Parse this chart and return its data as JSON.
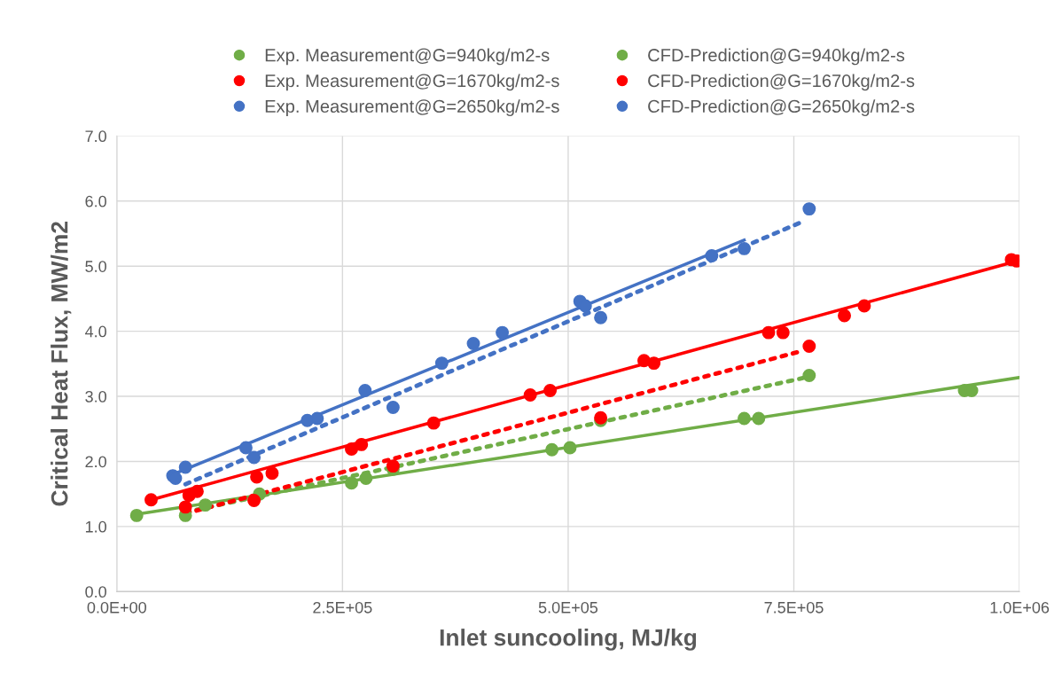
{
  "chart_data": {
    "type": "scatter",
    "xlabel": "Inlet suncooling, MJ/kg",
    "ylabel": "Critical Heat Flux, MW/m2",
    "xlim": [
      0,
      1000000
    ],
    "xticks": [
      {
        "value": 0,
        "label": "0.0E+00"
      },
      {
        "value": 250000,
        "label": "2.5E+05"
      },
      {
        "value": 500000,
        "label": "5.0E+05"
      },
      {
        "value": 750000,
        "label": "7.5E+05"
      },
      {
        "value": 1000000,
        "label": "1.0E+06"
      }
    ],
    "ylim": [
      0,
      7
    ],
    "yticks": [
      {
        "value": 0,
        "label": "0.0"
      },
      {
        "value": 1,
        "label": "1.0"
      },
      {
        "value": 2,
        "label": "2.0"
      },
      {
        "value": 3,
        "label": "3.0"
      },
      {
        "value": 4,
        "label": "4.0"
      },
      {
        "value": 5,
        "label": "5.0"
      },
      {
        "value": 6,
        "label": "6.0"
      },
      {
        "value": 7,
        "label": "7.0"
      }
    ],
    "grid": true,
    "legend": "top",
    "marker": "circle",
    "series": [
      {
        "name": "Exp. Measurement@G=940kg/m2-s",
        "color": "#70ad47",
        "x": [
          22000,
          98000,
          158000,
          260000,
          276000,
          482000,
          502000,
          695000,
          711000,
          939000,
          947000
        ],
        "values": [
          1.17,
          1.33,
          1.5,
          1.67,
          1.74,
          2.18,
          2.21,
          2.66,
          2.66,
          3.09,
          3.09
        ]
      },
      {
        "name": "CFD-Prediction@G=940kg/m2-s",
        "color": "#70ad47",
        "x": [
          76000,
          158000,
          306000,
          536000,
          767000
        ],
        "values": [
          1.17,
          null,
          1.88,
          2.63,
          3.32
        ]
      },
      {
        "name": "Exp. Measurement@G=1670kg/m2-s",
        "color": "#ff0000",
        "x": [
          38000,
          80000,
          89000,
          155000,
          172000,
          260000,
          271000,
          351000,
          458000,
          480000,
          584000,
          595000,
          722000,
          738000,
          806000,
          828000,
          991000,
          997000
        ],
        "values": [
          1.41,
          1.48,
          1.54,
          1.76,
          1.82,
          2.19,
          2.26,
          2.59,
          3.02,
          3.09,
          3.55,
          3.51,
          3.98,
          3.98,
          4.24,
          4.39,
          5.1,
          5.08
        ]
      },
      {
        "name": "CFD-Prediction@G=1670kg/m2-s",
        "color": "#ff0000",
        "x": [
          76000,
          152000,
          306000,
          536000,
          767000
        ],
        "values": [
          1.3,
          1.4,
          1.93,
          2.67,
          3.77
        ]
      },
      {
        "name": "Exp. Measurement@G=2650kg/m2-s",
        "color": "#4472c4",
        "x": [
          62000,
          65000,
          143000,
          211000,
          222000,
          275000,
          360000,
          395000,
          427000,
          513000,
          519000,
          659000,
          695000
        ],
        "values": [
          1.78,
          1.74,
          2.21,
          2.63,
          2.66,
          3.09,
          3.51,
          3.81,
          3.98,
          4.46,
          4.39,
          5.16,
          5.27
        ]
      },
      {
        "name": "CFD-Prediction@G=2650kg/m2-s",
        "color": "#4472c4",
        "x": [
          76000,
          152000,
          306000,
          536000,
          767000
        ],
        "values": [
          1.91,
          2.06,
          2.83,
          4.21,
          5.88
        ]
      },
      {
        "type": "line",
        "color": "#70ad47",
        "marker": "none",
        "line_style": "solid",
        "x": [
          22000,
          1000000
        ],
        "values": [
          1.19,
          3.29
        ]
      },
      {
        "type": "line",
        "color": "#70ad47",
        "marker": "none",
        "line_style": "dotted",
        "x": [
          76000,
          760000
        ],
        "values": [
          1.22,
          3.28
        ]
      },
      {
        "type": "line",
        "color": "#ff0000",
        "marker": "none",
        "line_style": "solid",
        "x": [
          38000,
          1000000
        ],
        "values": [
          1.41,
          5.09
        ]
      },
      {
        "type": "line",
        "color": "#ff0000",
        "marker": "none",
        "line_style": "dotted",
        "x": [
          76000,
          760000
        ],
        "values": [
          1.2,
          3.7
        ]
      },
      {
        "type": "line",
        "color": "#4472c4",
        "marker": "none",
        "line_style": "solid",
        "x": [
          62000,
          695000
        ],
        "values": [
          1.8,
          5.4
        ]
      },
      {
        "type": "line",
        "color": "#4472c4",
        "marker": "none",
        "line_style": "dotted",
        "x": [
          76000,
          759000
        ],
        "values": [
          1.65,
          5.68
        ]
      }
    ]
  }
}
